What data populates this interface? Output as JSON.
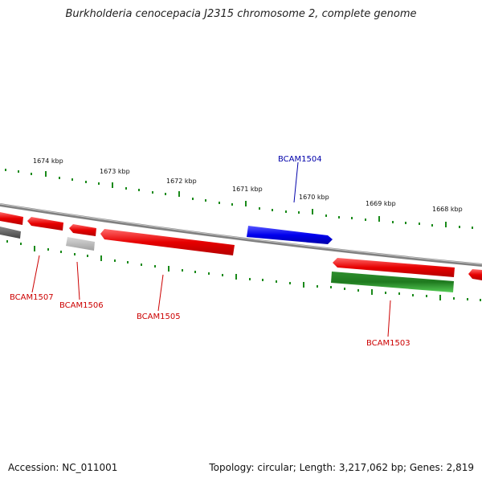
{
  "title": "Burkholderia cenocepacia J2315 chromosome 2, complete genome",
  "footer": {
    "accession": "Accession: NC_011001",
    "summary": "Topology: circular; Length: 3,217,062 bp; Genes: 2,819"
  },
  "colors": {
    "forward_gene": "#ff0000",
    "reverse_gene_blue": "#0000ff",
    "green_gene": "#1e9e1e",
    "gray_gene": "#9a9a9a",
    "dark_gene": "#555555",
    "backbone": "#888888",
    "tick": "#1a8a1a",
    "red_label": "#cc0000",
    "blue_label": "#0000aa"
  },
  "scale_labels": [
    "1674 kbp",
    "1673 kbp",
    "1672 kbp",
    "1671 kbp",
    "1670 kbp",
    "1669 kbp",
    "1668 kbp"
  ],
  "genes": [
    {
      "label": "BCAM1507",
      "color": "red"
    },
    {
      "label": "BCAM1506",
      "color": "red"
    },
    {
      "label": "BCAM1505",
      "color": "red"
    },
    {
      "label": "BCAM1504",
      "color": "blue"
    },
    {
      "label": "BCAM1503",
      "color": "red"
    }
  ]
}
